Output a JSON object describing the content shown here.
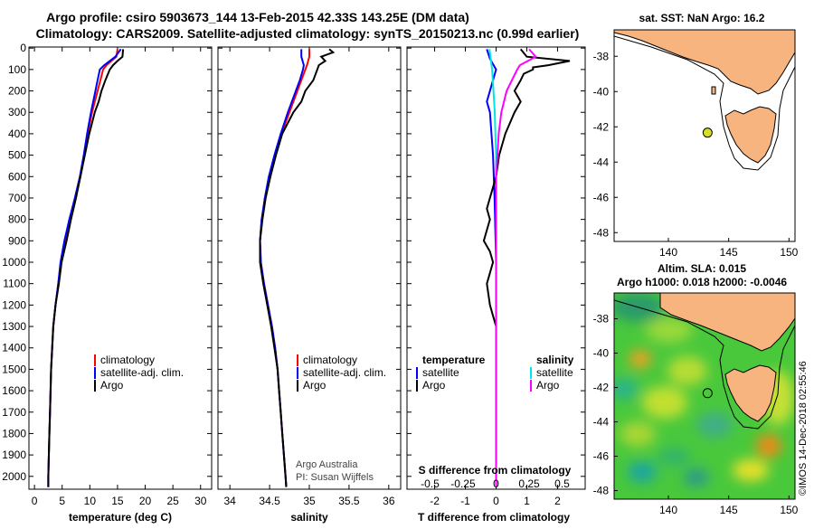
{
  "title": {
    "line1": "Argo profile: csiro 5903673_144 13-Feb-2015 42.33S 143.25E (DM data)",
    "line2": "Climatology: CARS2009. Satellite-adjusted climatology: synTS_20150213.nc (0.99d earlier)"
  },
  "colors": {
    "climatology": "#ff0000",
    "satellite": "#0000ff",
    "argo": "#000000",
    "t_sat": "#0000ff",
    "s_sat": "#00e5e5",
    "s_argo": "#ff00ff",
    "land": "#f7b47f",
    "marker": "#d4e020"
  },
  "chart_data": [
    {
      "type": "line",
      "id": "temperature",
      "xlabel": "temperature (deg C)",
      "xlim": [
        -1,
        32
      ],
      "xticks": [
        "0",
        "5",
        "10",
        "15",
        "20",
        "25",
        "30"
      ],
      "ylim": [
        2060,
        -5
      ],
      "yticks": [
        "0",
        "100",
        "200",
        "300",
        "400",
        "500",
        "600",
        "700",
        "800",
        "900",
        "1000",
        "1100",
        "1200",
        "1300",
        "1400",
        "1500",
        "1600",
        "1700",
        "1800",
        "1900",
        "2000"
      ],
      "legend": [
        "climatology",
        "satellite-adj. clim.",
        "Argo"
      ],
      "series": [
        {
          "name": "climatology",
          "depth": [
            5,
            40,
            60,
            80,
            100,
            150,
            200,
            300,
            400,
            500,
            600,
            700,
            800,
            900,
            1000,
            1100,
            1200,
            1300,
            1400,
            1500,
            1600,
            1700,
            1800,
            1900,
            2000,
            2050
          ],
          "values": [
            15.0,
            14.8,
            13.9,
            13.0,
            12.4,
            11.9,
            11.4,
            10.4,
            9.6,
            9.0,
            8.3,
            7.4,
            6.3,
            5.5,
            4.8,
            4.3,
            3.8,
            3.4,
            3.2,
            3.0,
            2.9,
            2.8,
            2.7,
            2.6,
            2.5,
            2.5
          ]
        },
        {
          "name": "satellite-adj. clim.",
          "depth": [
            5,
            40,
            60,
            80,
            100,
            150,
            200,
            300,
            400,
            500,
            600,
            700,
            800,
            900,
            1000,
            1100,
            1200,
            1300,
            1400,
            1500,
            1600,
            1700,
            1800,
            1900,
            2000,
            2050
          ],
          "values": [
            15.6,
            14.6,
            13.6,
            12.6,
            11.8,
            11.4,
            11.0,
            10.2,
            9.5,
            8.9,
            8.2,
            7.3,
            6.3,
            5.4,
            4.7,
            4.3,
            3.8,
            3.4,
            3.2,
            3.0,
            2.9,
            2.8,
            2.7,
            2.6,
            2.5,
            2.5
          ]
        },
        {
          "name": "Argo",
          "depth": [
            5,
            40,
            60,
            80,
            100,
            150,
            200,
            250,
            300,
            400,
            500,
            600,
            700,
            800,
            900,
            1000,
            1100,
            1200,
            1300,
            1400,
            1500,
            1600,
            1700,
            1800,
            1900,
            2000,
            2050
          ],
          "values": [
            16.0,
            15.9,
            15.0,
            14.2,
            13.6,
            12.8,
            12.1,
            11.6,
            10.9,
            9.9,
            9.1,
            8.3,
            7.5,
            6.6,
            5.8,
            4.9,
            4.4,
            3.8,
            3.4,
            3.2,
            3.0,
            2.9,
            2.8,
            2.7,
            2.6,
            2.5,
            2.5
          ]
        }
      ]
    },
    {
      "type": "line",
      "id": "salinity",
      "xlabel": "salinity",
      "xlim": [
        33.85,
        36.15
      ],
      "xticks": [
        "34",
        "34.5",
        "35",
        "35.5",
        "36"
      ],
      "ylim": [
        2060,
        -5
      ],
      "legend": [
        "climatology",
        "satellite-adj. clim.",
        "Argo"
      ],
      "series": [
        {
          "name": "climatology",
          "depth": [
            5,
            40,
            80,
            100,
            150,
            200,
            300,
            400,
            500,
            600,
            700,
            800,
            900,
            1000,
            1100,
            1200,
            1300,
            1400,
            1500,
            1600,
            1700,
            1800,
            1900,
            2000,
            2050
          ],
          "values": [
            35.0,
            35.0,
            34.97,
            34.95,
            34.9,
            34.85,
            34.75,
            34.65,
            34.57,
            34.5,
            34.45,
            34.4,
            34.38,
            34.39,
            34.43,
            34.48,
            34.53,
            34.57,
            34.6,
            34.62,
            34.64,
            34.66,
            34.68,
            34.7,
            34.71
          ]
        },
        {
          "name": "satellite-adj. clim.",
          "depth": [
            5,
            40,
            80,
            100,
            150,
            200,
            300,
            400,
            500,
            600,
            700,
            800,
            900,
            1000,
            1100,
            1200,
            1300,
            1400,
            1500,
            1600,
            1700,
            1800,
            1900,
            2000,
            2050
          ],
          "values": [
            34.9,
            34.9,
            34.93,
            34.92,
            34.88,
            34.83,
            34.73,
            34.64,
            34.56,
            34.49,
            34.44,
            34.4,
            34.38,
            34.39,
            34.43,
            34.48,
            34.53,
            34.57,
            34.6,
            34.62,
            34.64,
            34.66,
            34.68,
            34.7,
            34.71
          ]
        },
        {
          "name": "Argo",
          "depth": [
            5,
            20,
            40,
            60,
            80,
            100,
            150,
            200,
            250,
            300,
            400,
            500,
            600,
            700,
            800,
            900,
            1000,
            1100,
            1200,
            1300,
            1400,
            1500,
            1600,
            1700,
            1800,
            1900,
            2000,
            2050
          ],
          "values": [
            35.25,
            35.3,
            35.15,
            35.2,
            35.12,
            35.1,
            35.05,
            34.95,
            34.9,
            34.8,
            34.66,
            34.58,
            34.51,
            34.45,
            34.41,
            34.38,
            34.38,
            34.42,
            34.47,
            34.52,
            34.56,
            34.6,
            34.62,
            34.64,
            34.66,
            34.68,
            34.7,
            34.71
          ]
        }
      ],
      "annotation": {
        "line1": "Argo Australia",
        "line2": "PI: Susan Wijffels"
      }
    },
    {
      "type": "line",
      "id": "difference",
      "xlabel": "T difference from climatology",
      "sublabel": "S difference from climatology",
      "xlim": [
        -2.9,
        2.9
      ],
      "xticks": [
        "-2",
        "-1",
        "0",
        "1",
        "2"
      ],
      "sticks": [
        "-0.5",
        "-0.25",
        "0",
        "0.25",
        "0.5"
      ],
      "ylim": [
        2060,
        -5
      ],
      "legend_headers": {
        "temperature": "temperature",
        "salinity": "salinity"
      },
      "legend_left": [
        "satellite",
        "Argo"
      ],
      "legend_right": [
        "satellite",
        "Argo"
      ],
      "series": [
        {
          "name": "T satellite",
          "depth": [
            5,
            50,
            100,
            150,
            200,
            250,
            300,
            500,
            700,
            1000,
            1500,
            2050
          ],
          "values": [
            -0.3,
            -0.2,
            0.0,
            -0.1,
            -0.2,
            -0.3,
            -0.2,
            -0.1,
            -0.05,
            0,
            0,
            0
          ]
        },
        {
          "name": "T Argo",
          "depth": [
            5,
            40,
            60,
            80,
            90,
            100,
            120,
            150,
            200,
            250,
            300,
            400,
            500,
            600,
            700,
            750,
            800,
            850,
            900,
            950,
            1000,
            1100,
            1200,
            1250,
            1300,
            1400,
            1500,
            2050
          ],
          "values": [
            0.8,
            1.0,
            2.4,
            1.7,
            1.2,
            1.2,
            0.9,
            0.8,
            0.6,
            0.8,
            0.6,
            0.3,
            0.1,
            0.0,
            -0.2,
            -0.3,
            -0.2,
            -0.3,
            -0.4,
            -0.2,
            -0.1,
            -0.3,
            -0.2,
            -0.1,
            0.0,
            0.0,
            0.0,
            0.0
          ]
        },
        {
          "name": "S satellite",
          "depth": [
            5,
            100,
            200,
            300,
            500,
            700,
            1000,
            1300,
            1500,
            2050
          ],
          "values": [
            -0.05,
            -0.03,
            -0.02,
            -0.01,
            0,
            0,
            0,
            0,
            0,
            0
          ]
        },
        {
          "name": "S Argo",
          "depth": [
            5,
            40,
            80,
            100,
            150,
            200,
            300,
            400,
            500,
            600,
            2050
          ],
          "values": [
            0.25,
            0.3,
            0.18,
            0.16,
            0.12,
            0.08,
            0.04,
            0.02,
            0.01,
            0,
            0
          ]
        }
      ]
    },
    {
      "type": "map",
      "id": "sst_map",
      "title": "sat. SST: NaN Argo: 16.2",
      "xticks": [
        "140",
        "145",
        "150"
      ],
      "yticks": [
        "-38",
        "-40",
        "-42",
        "-44",
        "-46",
        "-48"
      ],
      "xlim": [
        135.5,
        150.5
      ],
      "ylim": [
        -48.5,
        -36.5
      ],
      "argo_position": {
        "lon": 143.25,
        "lat": -42.33
      }
    },
    {
      "type": "heatmap",
      "id": "sla_map",
      "title": "Altim. SLA: 0.015",
      "subtitle": "Argo h1000: 0.018 h2000: -0.0046",
      "xticks": [
        "140",
        "145",
        "150"
      ],
      "yticks": [
        "-38",
        "-40",
        "-42",
        "-44",
        "-46",
        "-48"
      ],
      "xlim": [
        135.5,
        150.5
      ],
      "ylim": [
        -48.5,
        -36.5
      ],
      "argo_position": {
        "lon": 143.25,
        "lat": -42.33
      }
    }
  ],
  "footer": {
    "watermark": "©IMOS 14-Dec-2018 02:55:46"
  }
}
